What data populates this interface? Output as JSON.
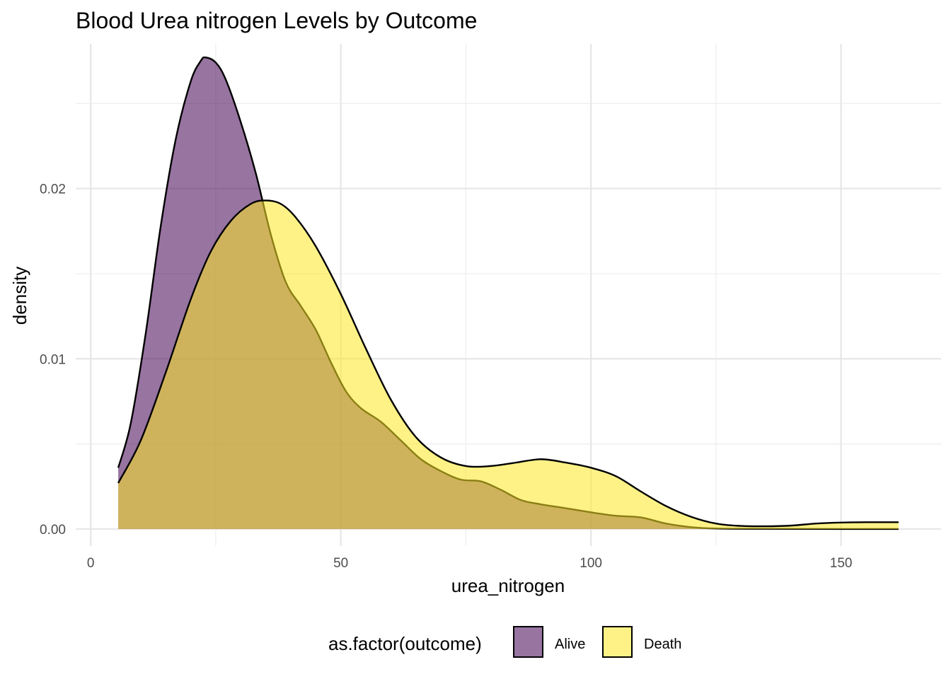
{
  "chart_data": {
    "type": "area",
    "subtype": "density",
    "title": "Blood Urea nitrogen Levels by Outcome",
    "xlabel": "urea_nitrogen",
    "ylabel": "density",
    "xlim": [
      -3,
      170
    ],
    "ylim": [
      -0.001,
      0.0285
    ],
    "x_ticks": [
      0,
      50,
      100,
      150
    ],
    "x_tick_labels": [
      "0",
      "50",
      "100",
      "150"
    ],
    "y_ticks": [
      0.0,
      0.01,
      0.02
    ],
    "y_tick_labels": [
      "0.00",
      "0.01",
      "0.02"
    ],
    "grid": true,
    "legend": {
      "title": "as.factor(outcome)",
      "position": "bottom",
      "entries": [
        "Alive",
        "Death"
      ]
    },
    "series": [
      {
        "name": "Alive",
        "color": "#440154",
        "fill_opacity": 0.55,
        "points": [
          [
            5.5,
            0.0036
          ],
          [
            8,
            0.0062
          ],
          [
            11,
            0.0115
          ],
          [
            14,
            0.0178
          ],
          [
            17,
            0.0229
          ],
          [
            20,
            0.0263
          ],
          [
            22,
            0.0275
          ],
          [
            23,
            0.0277
          ],
          [
            25,
            0.0274
          ],
          [
            27,
            0.0264
          ],
          [
            30,
            0.0239
          ],
          [
            33,
            0.0209
          ],
          [
            36,
            0.0173
          ],
          [
            39,
            0.0145
          ],
          [
            42,
            0.0131
          ],
          [
            45,
            0.0117
          ],
          [
            48,
            0.0098
          ],
          [
            51,
            0.0081
          ],
          [
            54,
            0.0071
          ],
          [
            58,
            0.0063
          ],
          [
            62,
            0.0052
          ],
          [
            66,
            0.0041
          ],
          [
            70,
            0.0034
          ],
          [
            74,
            0.0029
          ],
          [
            78,
            0.0028
          ],
          [
            82,
            0.0023
          ],
          [
            86,
            0.0017
          ],
          [
            90,
            0.00145
          ],
          [
            95,
            0.00122
          ],
          [
            100,
            0.00098
          ],
          [
            105,
            0.00078
          ],
          [
            110,
            0.00068
          ],
          [
            115,
            0.00032
          ],
          [
            120,
            0.00011
          ],
          [
            125,
            3e-05
          ],
          [
            135,
            1e-05
          ],
          [
            150,
            0.0
          ],
          [
            161.5,
            0.0
          ]
        ]
      },
      {
        "name": "Death",
        "color": "#FDE725",
        "fill_opacity": 0.55,
        "points": [
          [
            5.5,
            0.0027
          ],
          [
            10,
            0.0052
          ],
          [
            15,
            0.0092
          ],
          [
            20,
            0.0135
          ],
          [
            24,
            0.0163
          ],
          [
            28,
            0.0181
          ],
          [
            32,
            0.0191
          ],
          [
            35,
            0.0193
          ],
          [
            38,
            0.0191
          ],
          [
            41,
            0.0183
          ],
          [
            45,
            0.0166
          ],
          [
            50,
            0.0138
          ],
          [
            55,
            0.0106
          ],
          [
            60,
            0.0076
          ],
          [
            65,
            0.0054
          ],
          [
            70,
            0.0042
          ],
          [
            75,
            0.0037
          ],
          [
            80,
            0.0037
          ],
          [
            85,
            0.0039
          ],
          [
            90,
            0.0041
          ],
          [
            95,
            0.0039
          ],
          [
            100,
            0.0036
          ],
          [
            105,
            0.0031
          ],
          [
            110,
            0.0022
          ],
          [
            115,
            0.00135
          ],
          [
            120,
            0.00072
          ],
          [
            125,
            0.00032
          ],
          [
            130,
            0.00018
          ],
          [
            135,
            0.00016
          ],
          [
            140,
            0.0002
          ],
          [
            145,
            0.00032
          ],
          [
            150,
            0.00038
          ],
          [
            155,
            0.0004
          ],
          [
            161.5,
            0.0004
          ]
        ]
      }
    ]
  }
}
